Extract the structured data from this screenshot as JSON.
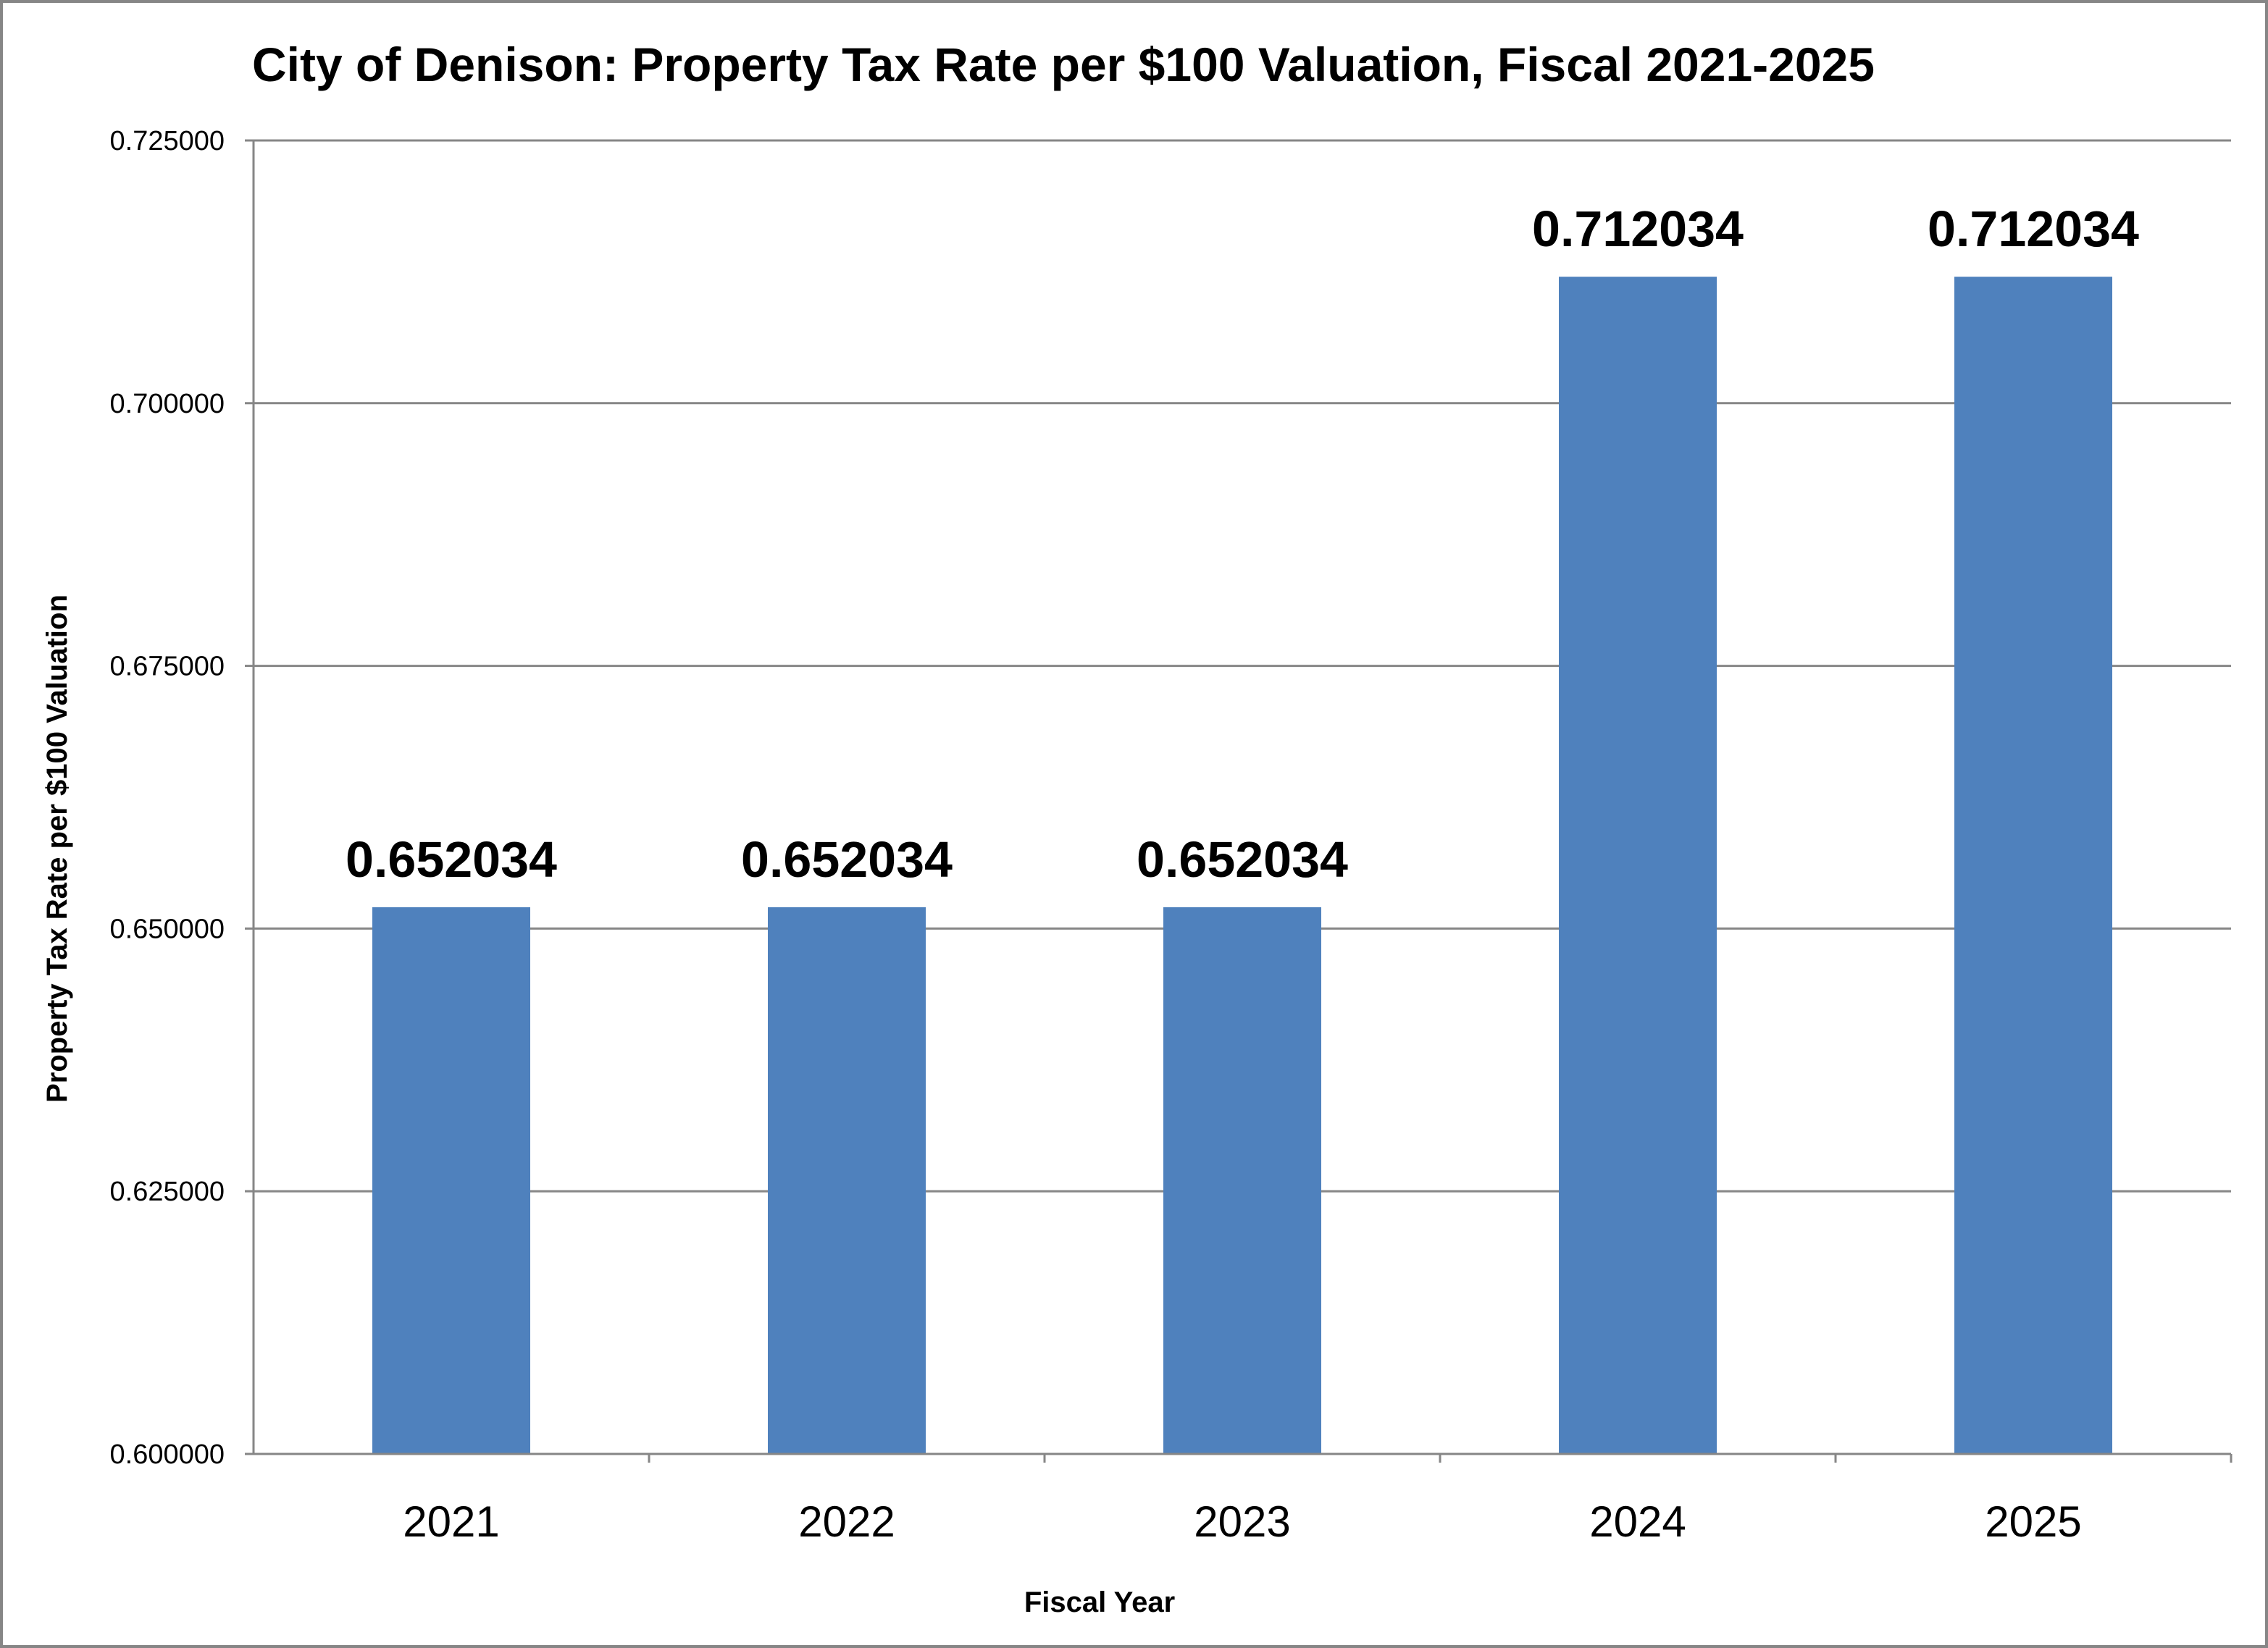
{
  "chart_data": {
    "type": "bar",
    "title": "City of Denison: Property Tax Rate per $100 Valuation, Fiscal 2021-2025",
    "xlabel": "Fiscal Year",
    "ylabel": "Property Tax Rate per $100 Valuation",
    "categories": [
      "2021",
      "2022",
      "2023",
      "2024",
      "2025"
    ],
    "values": [
      0.652034,
      0.652034,
      0.652034,
      0.712034,
      0.712034
    ],
    "data_labels": [
      "0.652034",
      "0.652034",
      "0.652034",
      "0.712034",
      "0.712034"
    ],
    "ylim": [
      0.6,
      0.725
    ],
    "yticks": [
      "0.600000",
      "0.625000",
      "0.650000",
      "0.675000",
      "0.700000",
      "0.725000"
    ],
    "grid": true,
    "legend": "none",
    "bar_color": "#4F81BD",
    "gridline_color": "#868686"
  }
}
